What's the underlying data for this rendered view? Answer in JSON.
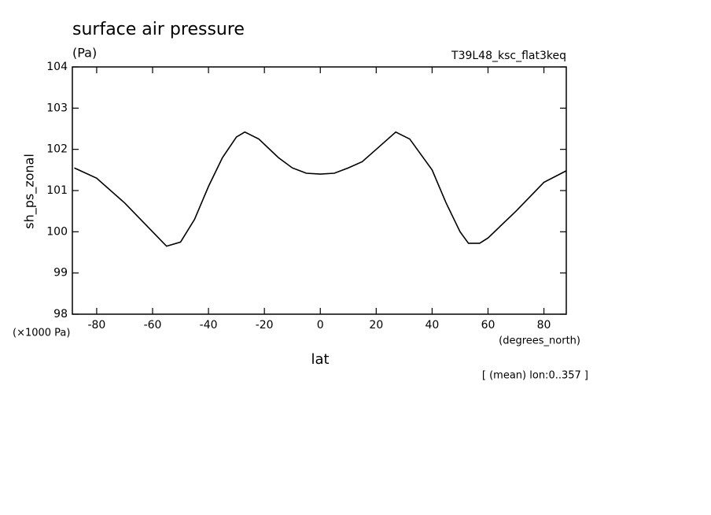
{
  "chart_data": {
    "type": "line",
    "title": "surface air pressure",
    "subtitle": "(Pa)",
    "annotation": "T39L48_ksc_flat3keq",
    "y_label": "sh_ps_zonal",
    "y_unit": "(×1000 Pa)",
    "x_unit": "(degrees_north)",
    "x_label": "lat",
    "footnote": "[ (mean) lon:0..357 ]",
    "x": [
      -88,
      -80,
      -70,
      -60,
      -55,
      -50,
      -45,
      -40,
      -35,
      -30,
      -27,
      -22,
      -15,
      -10,
      -5,
      0,
      5,
      10,
      15,
      20,
      27,
      32,
      40,
      45,
      50,
      53,
      57,
      60,
      70,
      80,
      88
    ],
    "series": [
      {
        "name": "sh_ps_zonal",
        "color": "#000000",
        "values": [
          101.55,
          101.3,
          100.7,
          100.0,
          99.65,
          99.75,
          100.3,
          101.1,
          101.8,
          102.3,
          102.42,
          102.25,
          101.8,
          101.55,
          101.42,
          101.4,
          101.42,
          101.55,
          101.7,
          102.0,
          102.42,
          102.25,
          101.5,
          100.7,
          100.0,
          99.72,
          99.72,
          99.85,
          100.5,
          101.2,
          101.48
        ]
      }
    ],
    "xlim": [
      -88.7,
      88.0
    ],
    "ylim": [
      98,
      104
    ],
    "xticks": [
      -80,
      -60,
      -40,
      -20,
      0,
      20,
      40,
      60,
      80
    ],
    "yticks": [
      98,
      99,
      100,
      101,
      102,
      103,
      104
    ]
  }
}
